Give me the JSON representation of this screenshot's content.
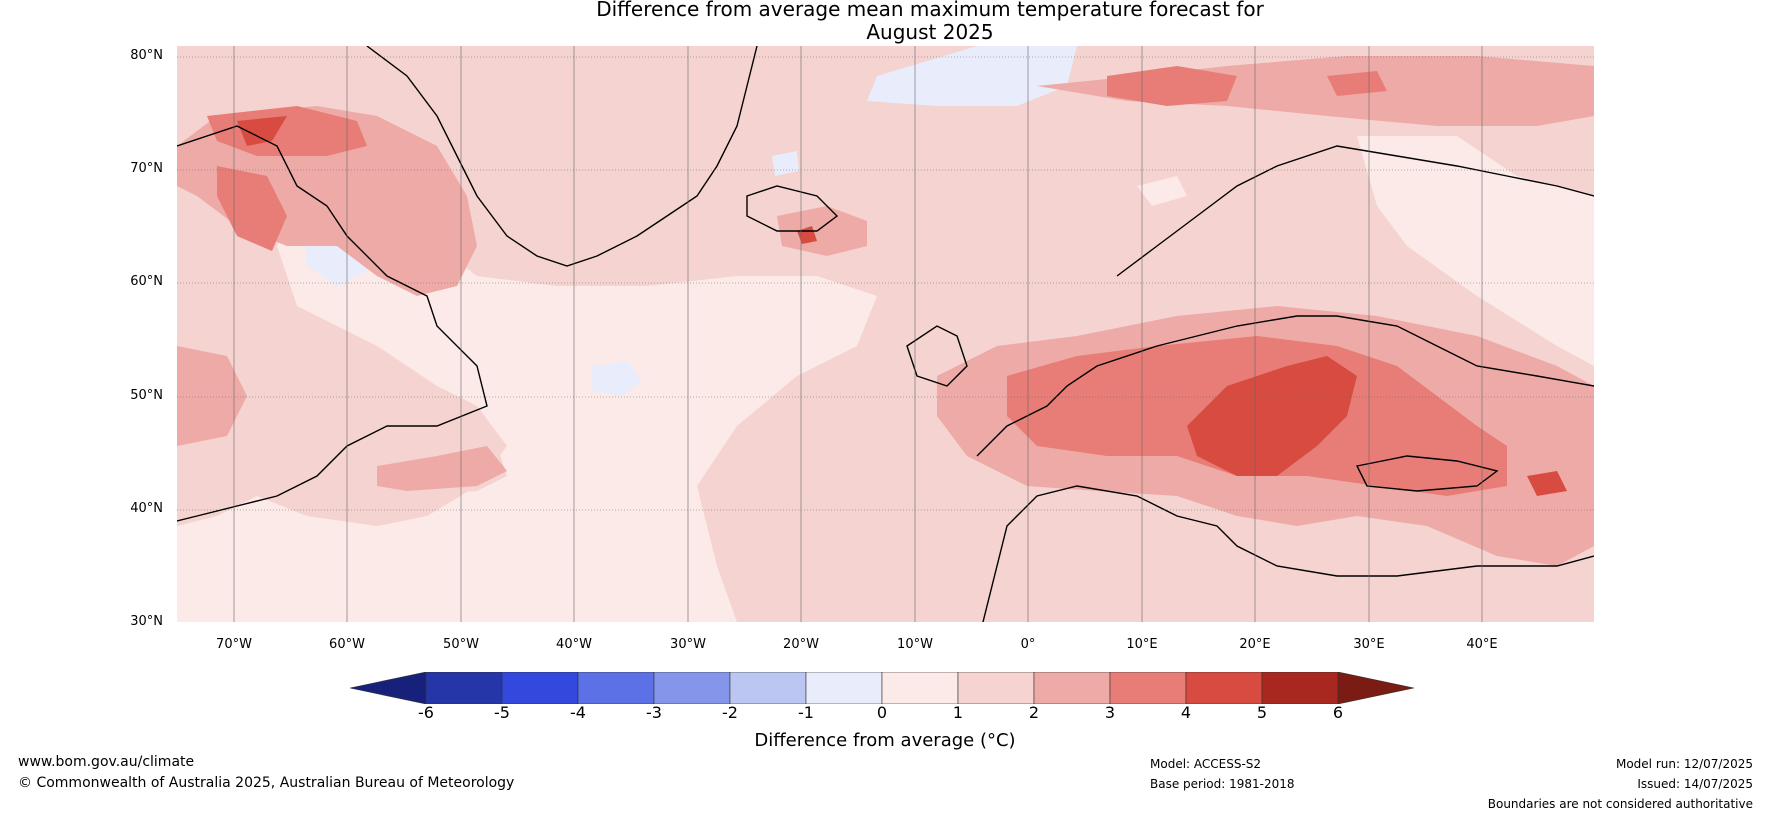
{
  "title_line1": "Difference from average mean maximum temperature forecast for",
  "title_line2": "August 2025",
  "lat_labels": [
    "80°N",
    "70°N",
    "60°N",
    "50°N",
    "40°N",
    "30°N"
  ],
  "lon_labels": [
    "70°W",
    "60°W",
    "50°W",
    "40°W",
    "30°W",
    "20°W",
    "10°W",
    "0°",
    "10°E",
    "20°E",
    "30°E",
    "40°E"
  ],
  "colorbar": {
    "ticks": [
      "-6",
      "-5",
      "-4",
      "-3",
      "-2",
      "-1",
      "0",
      "1",
      "2",
      "3",
      "4",
      "5",
      "6"
    ],
    "colors": [
      "#17207a",
      "#2536a8",
      "#3348dc",
      "#5d71e6",
      "#8596ea",
      "#bcc6f2",
      "#e8ecfb",
      "#fbeae7",
      "#f4d3d0",
      "#eeaaa6",
      "#e77d76",
      "#d84b40",
      "#a8281f",
      "#7a1c14"
    ],
    "label": "Difference from average (°C)"
  },
  "footer": {
    "website": "www.bom.gov.au/climate",
    "copyright": "© Commonwealth of Australia 2025, Australian Bureau of Meteorology",
    "model": "Model: ACCESS-S2",
    "base_period": "Base period: 1981-2018",
    "model_run": "Model run: 12/07/2025",
    "issued": "Issued: 14/07/2025",
    "disclaimer": "Boundaries are not considered authoritative"
  }
}
